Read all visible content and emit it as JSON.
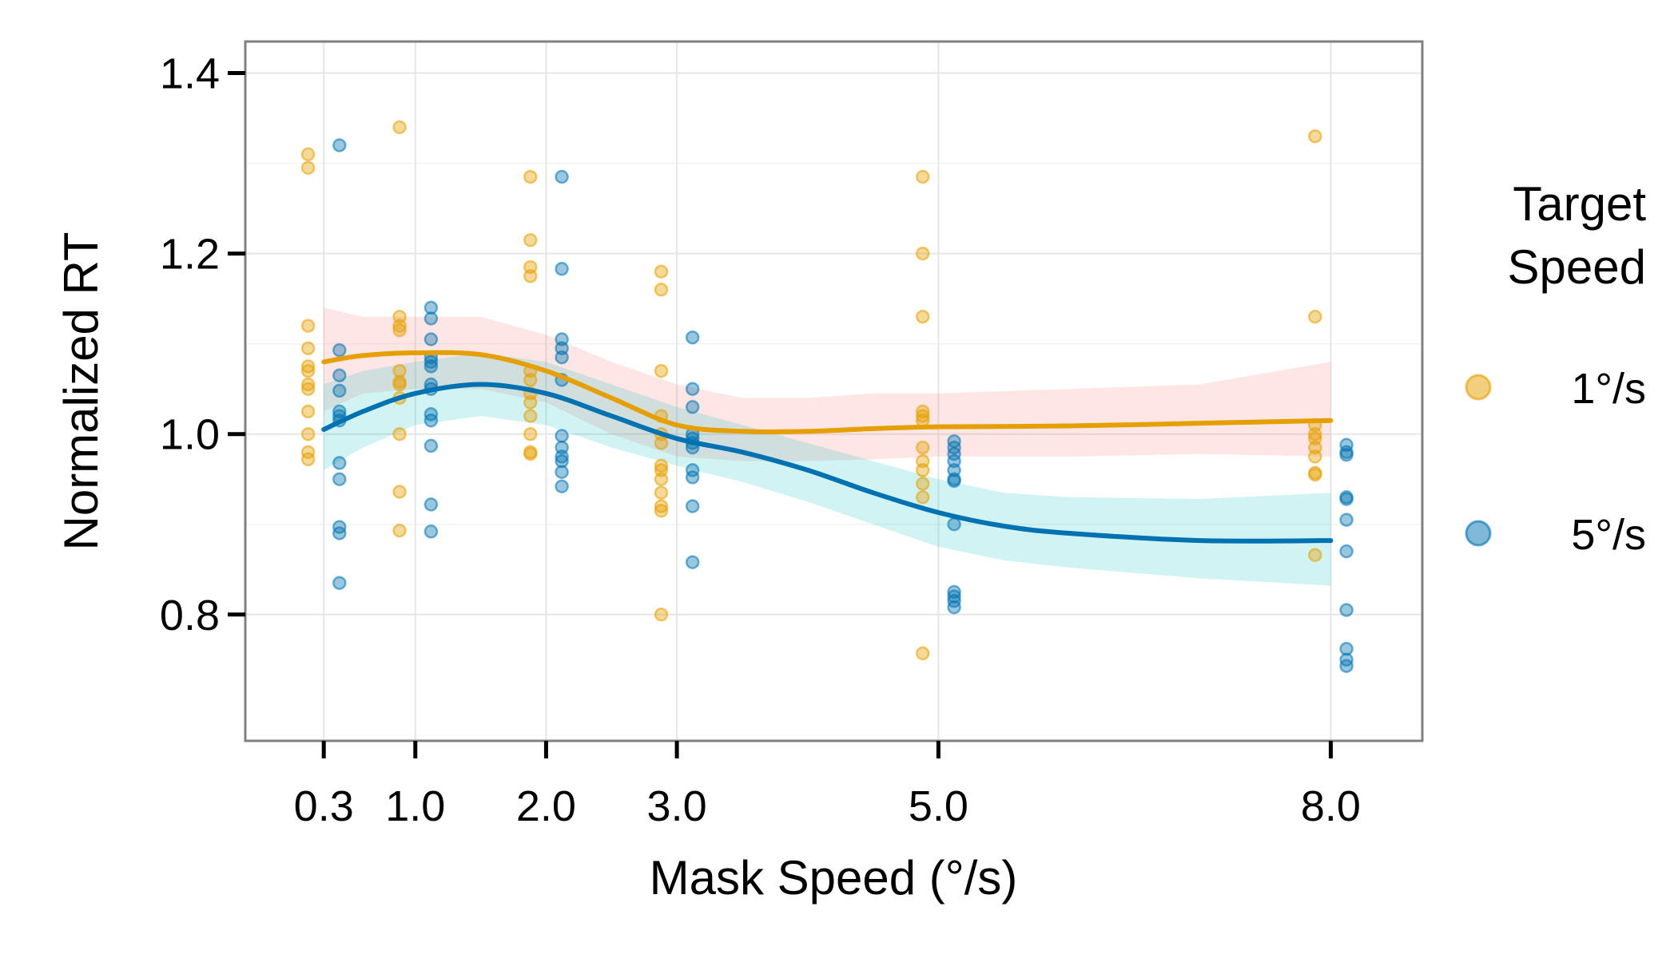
{
  "chart_data": {
    "type": "scatter",
    "title": "",
    "xlabel": "Mask Speed (°/s)",
    "ylabel": "Normalized RT",
    "x_ticks": [
      0.3,
      1.0,
      2.0,
      3.0,
      5.0,
      8.0
    ],
    "x_tick_labels": [
      "0.3",
      "1.0",
      "2.0",
      "3.0",
      "5.0",
      "8.0"
    ],
    "y_ticks": [
      0.8,
      1.0,
      1.2,
      1.4
    ],
    "y_tick_labels": [
      "0.8",
      "1.0",
      "1.2",
      "1.4"
    ],
    "xlim": [
      -0.3,
      8.7
    ],
    "ylim": [
      0.66,
      1.435
    ],
    "grid": true,
    "legend": {
      "title": [
        "Target",
        "Speed"
      ],
      "position": "right"
    },
    "series": [
      {
        "name": "1°/s",
        "color": "#E69F00",
        "point_offset": -0.12,
        "points": [
          [
            0.3,
            1.31
          ],
          [
            0.3,
            1.295
          ],
          [
            0.3,
            1.12
          ],
          [
            0.3,
            1.095
          ],
          [
            0.3,
            1.075
          ],
          [
            0.3,
            1.07
          ],
          [
            0.3,
            1.055
          ],
          [
            0.3,
            1.05
          ],
          [
            0.3,
            1.025
          ],
          [
            0.3,
            1.0
          ],
          [
            0.3,
            0.98
          ],
          [
            0.3,
            0.972
          ],
          [
            1.0,
            1.34
          ],
          [
            1.0,
            1.13
          ],
          [
            1.0,
            1.12
          ],
          [
            1.0,
            1.115
          ],
          [
            1.0,
            1.07
          ],
          [
            1.0,
            1.058
          ],
          [
            1.0,
            1.055
          ],
          [
            1.0,
            1.04
          ],
          [
            1.0,
            1.0
          ],
          [
            1.0,
            0.936
          ],
          [
            1.0,
            0.893
          ],
          [
            2.0,
            1.285
          ],
          [
            2.0,
            1.215
          ],
          [
            2.0,
            1.185
          ],
          [
            2.0,
            1.175
          ],
          [
            2.0,
            1.07
          ],
          [
            2.0,
            1.06
          ],
          [
            2.0,
            1.045
          ],
          [
            2.0,
            1.035
          ],
          [
            2.0,
            1.02
          ],
          [
            2.0,
            1.0
          ],
          [
            2.0,
            0.98
          ],
          [
            2.0,
            0.978
          ],
          [
            3.0,
            1.18
          ],
          [
            3.0,
            1.16
          ],
          [
            3.0,
            1.07
          ],
          [
            3.0,
            1.02
          ],
          [
            3.0,
            1.0
          ],
          [
            3.0,
            0.99
          ],
          [
            3.0,
            0.965
          ],
          [
            3.0,
            0.96
          ],
          [
            3.0,
            0.95
          ],
          [
            3.0,
            0.935
          ],
          [
            3.0,
            0.92
          ],
          [
            3.0,
            0.915
          ],
          [
            3.0,
            0.8
          ],
          [
            5.0,
            1.285
          ],
          [
            5.0,
            1.2
          ],
          [
            5.0,
            1.13
          ],
          [
            5.0,
            1.025
          ],
          [
            5.0,
            1.02
          ],
          [
            5.0,
            1.015
          ],
          [
            5.0,
            0.985
          ],
          [
            5.0,
            0.97
          ],
          [
            5.0,
            0.96
          ],
          [
            5.0,
            0.945
          ],
          [
            5.0,
            0.93
          ],
          [
            5.0,
            0.757
          ],
          [
            8.0,
            1.33
          ],
          [
            8.0,
            1.13
          ],
          [
            8.0,
            1.01
          ],
          [
            8.0,
            1.0
          ],
          [
            8.0,
            0.995
          ],
          [
            8.0,
            0.985
          ],
          [
            8.0,
            0.975
          ],
          [
            8.0,
            0.957
          ],
          [
            8.0,
            0.955
          ],
          [
            8.0,
            0.866
          ]
        ],
        "smooth": {
          "x": [
            0.3,
            0.6,
            1.0,
            1.5,
            2.0,
            2.5,
            3.0,
            3.5,
            4.0,
            4.5,
            5.0,
            6.0,
            7.0,
            8.0
          ],
          "y": [
            1.08,
            1.087,
            1.09,
            1.088,
            1.07,
            1.04,
            1.01,
            1.003,
            1.003,
            1.006,
            1.008,
            1.009,
            1.012,
            1.015
          ],
          "lower": [
            1.025,
            1.045,
            1.05,
            1.05,
            1.035,
            1.0,
            0.975,
            0.97,
            0.97,
            0.972,
            0.975,
            0.975,
            0.978,
            0.975
          ],
          "upper": [
            1.14,
            1.13,
            1.13,
            1.13,
            1.11,
            1.08,
            1.055,
            1.04,
            1.04,
            1.045,
            1.045,
            1.05,
            1.055,
            1.08
          ],
          "band_color": "#F8766D"
        }
      },
      {
        "name": "5°/s",
        "color": "#0072B2",
        "point_offset": 0.12,
        "points": [
          [
            0.3,
            1.32
          ],
          [
            0.3,
            1.093
          ],
          [
            0.3,
            1.065
          ],
          [
            0.3,
            1.048
          ],
          [
            0.3,
            1.025
          ],
          [
            0.3,
            1.02
          ],
          [
            0.3,
            1.015
          ],
          [
            0.3,
            0.968
          ],
          [
            0.3,
            0.95
          ],
          [
            0.3,
            0.897
          ],
          [
            0.3,
            0.89
          ],
          [
            0.3,
            0.835
          ],
          [
            1.0,
            1.14
          ],
          [
            1.0,
            1.128
          ],
          [
            1.0,
            1.105
          ],
          [
            1.0,
            1.085
          ],
          [
            1.0,
            1.08
          ],
          [
            1.0,
            1.075
          ],
          [
            1.0,
            1.055
          ],
          [
            1.0,
            1.05
          ],
          [
            1.0,
            1.022
          ],
          [
            1.0,
            1.015
          ],
          [
            1.0,
            0.987
          ],
          [
            1.0,
            0.922
          ],
          [
            1.0,
            0.892
          ],
          [
            2.0,
            1.285
          ],
          [
            2.0,
            1.183
          ],
          [
            2.0,
            1.105
          ],
          [
            2.0,
            1.095
          ],
          [
            2.0,
            1.085
          ],
          [
            2.0,
            1.06
          ],
          [
            2.0,
            0.998
          ],
          [
            2.0,
            0.985
          ],
          [
            2.0,
            0.975
          ],
          [
            2.0,
            0.97
          ],
          [
            2.0,
            0.958
          ],
          [
            2.0,
            0.942
          ],
          [
            3.0,
            1.107
          ],
          [
            3.0,
            1.05
          ],
          [
            3.0,
            1.03
          ],
          [
            3.0,
            1.0
          ],
          [
            3.0,
            0.995
          ],
          [
            3.0,
            0.99
          ],
          [
            3.0,
            0.985
          ],
          [
            3.0,
            0.96
          ],
          [
            3.0,
            0.952
          ],
          [
            3.0,
            0.92
          ],
          [
            3.0,
            0.858
          ],
          [
            5.0,
            0.992
          ],
          [
            5.0,
            0.985
          ],
          [
            5.0,
            0.978
          ],
          [
            5.0,
            0.97
          ],
          [
            5.0,
            0.96
          ],
          [
            5.0,
            0.95
          ],
          [
            5.0,
            0.948
          ],
          [
            5.0,
            0.9
          ],
          [
            5.0,
            0.825
          ],
          [
            5.0,
            0.82
          ],
          [
            5.0,
            0.815
          ],
          [
            5.0,
            0.808
          ],
          [
            8.0,
            0.988
          ],
          [
            8.0,
            0.98
          ],
          [
            8.0,
            0.977
          ],
          [
            8.0,
            0.93
          ],
          [
            8.0,
            0.928
          ],
          [
            8.0,
            0.905
          ],
          [
            8.0,
            0.87
          ],
          [
            8.0,
            0.805
          ],
          [
            8.0,
            0.762
          ],
          [
            8.0,
            0.75
          ],
          [
            8.0,
            0.743
          ]
        ],
        "smooth": {
          "x": [
            0.3,
            0.6,
            1.0,
            1.5,
            2.0,
            2.5,
            3.0,
            3.5,
            4.0,
            4.5,
            5.0,
            5.5,
            6.0,
            7.0,
            8.0
          ],
          "y": [
            1.005,
            1.025,
            1.045,
            1.055,
            1.045,
            1.02,
            0.995,
            0.98,
            0.96,
            0.935,
            0.913,
            0.898,
            0.89,
            0.882,
            0.882
          ],
          "lower": [
            0.96,
            0.985,
            1.01,
            1.02,
            1.01,
            0.985,
            0.965,
            0.947,
            0.925,
            0.9,
            0.875,
            0.86,
            0.852,
            0.84,
            0.832
          ],
          "upper": [
            1.055,
            1.07,
            1.08,
            1.09,
            1.08,
            1.055,
            1.03,
            1.01,
            0.99,
            0.97,
            0.95,
            0.935,
            0.93,
            0.928,
            0.935
          ],
          "band_color": "#00BFC4"
        }
      }
    ]
  }
}
